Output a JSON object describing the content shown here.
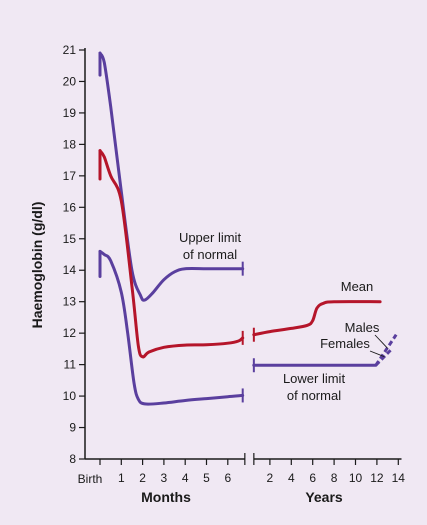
{
  "colors": {
    "background": "#f0e8f3",
    "blue": "#5a3f9e",
    "red": "#b5152a",
    "axis": "#1a1a1a"
  },
  "chart_data": {
    "type": "line",
    "ylabel": "Haemoglobin (g/dl)",
    "ylim": [
      8,
      21
    ],
    "yticks": [
      "8",
      "9",
      "10",
      "11",
      "12",
      "13",
      "14",
      "15",
      "16",
      "17",
      "18",
      "19",
      "20",
      "21"
    ],
    "months_axis": {
      "label": "Months",
      "xlim": [
        0,
        6.8
      ],
      "ticks": [
        {
          "value": 0,
          "label": "Birth"
        },
        {
          "value": 1,
          "label": "1"
        },
        {
          "value": 2,
          "label": "2"
        },
        {
          "value": 3,
          "label": "3"
        },
        {
          "value": 4,
          "label": "4"
        },
        {
          "value": 5,
          "label": "5"
        },
        {
          "value": 6,
          "label": "6"
        }
      ]
    },
    "years_axis": {
      "label": "Years",
      "xlim": [
        0.5,
        14.3
      ],
      "ticks": [
        {
          "value": 2,
          "label": "2"
        },
        {
          "value": 4,
          "label": "4"
        },
        {
          "value": 6,
          "label": "6"
        },
        {
          "value": 8,
          "label": "8"
        },
        {
          "value": 10,
          "label": "10"
        },
        {
          "value": 12,
          "label": "12"
        },
        {
          "value": 14,
          "label": "14"
        }
      ]
    },
    "series": [
      {
        "name": "Upper limit of normal",
        "color": "#5a3f9e",
        "months": [
          [
            0,
            20.2
          ],
          [
            0,
            20.9
          ],
          [
            0.2,
            20.6
          ],
          [
            0.5,
            19.2
          ],
          [
            1.0,
            16.5
          ],
          [
            1.5,
            14.0
          ],
          [
            1.9,
            13.2
          ],
          [
            2.1,
            13.05
          ],
          [
            2.5,
            13.3
          ],
          [
            3.0,
            13.7
          ],
          [
            3.5,
            13.95
          ],
          [
            4.0,
            14.05
          ],
          [
            5.0,
            14.05
          ],
          [
            6.0,
            14.05
          ],
          [
            6.7,
            14.05
          ]
        ]
      },
      {
        "name": "Mean",
        "color": "#b5152a",
        "months": [
          [
            0,
            16.9
          ],
          [
            0,
            17.8
          ],
          [
            0.2,
            17.6
          ],
          [
            0.5,
            17.0
          ],
          [
            1.0,
            16.2
          ],
          [
            1.5,
            13.5
          ],
          [
            1.8,
            11.6
          ],
          [
            2.0,
            11.25
          ],
          [
            2.3,
            11.4
          ],
          [
            3.0,
            11.55
          ],
          [
            4.0,
            11.62
          ],
          [
            5.0,
            11.63
          ],
          [
            6.0,
            11.68
          ],
          [
            6.5,
            11.75
          ],
          [
            6.7,
            11.85
          ]
        ],
        "years": [
          [
            0.5,
            11.95
          ],
          [
            2,
            12.05
          ],
          [
            4,
            12.15
          ],
          [
            5.5,
            12.25
          ],
          [
            6,
            12.4
          ],
          [
            6.4,
            12.8
          ],
          [
            7,
            12.95
          ],
          [
            8,
            13.0
          ],
          [
            12.3,
            13.0
          ]
        ]
      },
      {
        "name": "Lower limit of normal",
        "color": "#5a3f9e",
        "months": [
          [
            0,
            13.8
          ],
          [
            0,
            14.6
          ],
          [
            0.2,
            14.5
          ],
          [
            0.5,
            14.3
          ],
          [
            1.0,
            13.3
          ],
          [
            1.3,
            12.0
          ],
          [
            1.6,
            10.4
          ],
          [
            1.8,
            9.9
          ],
          [
            2.1,
            9.75
          ],
          [
            3.0,
            9.78
          ],
          [
            4.0,
            9.86
          ],
          [
            5.0,
            9.92
          ],
          [
            6.0,
            9.98
          ],
          [
            6.7,
            10.02
          ]
        ],
        "years": [
          [
            0.5,
            10.98
          ],
          [
            4,
            10.98
          ],
          [
            8,
            10.98
          ],
          [
            11.9,
            10.98
          ]
        ]
      }
    ],
    "dashed_branches": [
      {
        "name": "Males",
        "color": "#5a3f9e",
        "points": [
          [
            11.9,
            10.98
          ],
          [
            13.8,
            11.95
          ]
        ]
      },
      {
        "name": "Females",
        "color": "#5a3f9e",
        "points": [
          [
            11.9,
            10.98
          ],
          [
            13.4,
            11.5
          ]
        ]
      }
    ],
    "annotations": {
      "upper_limit": [
        "Upper limit",
        "of normal"
      ],
      "mean": "Mean",
      "males": "Males",
      "females": "Females",
      "lower_limit": [
        "Lower limit",
        "of normal"
      ]
    }
  }
}
